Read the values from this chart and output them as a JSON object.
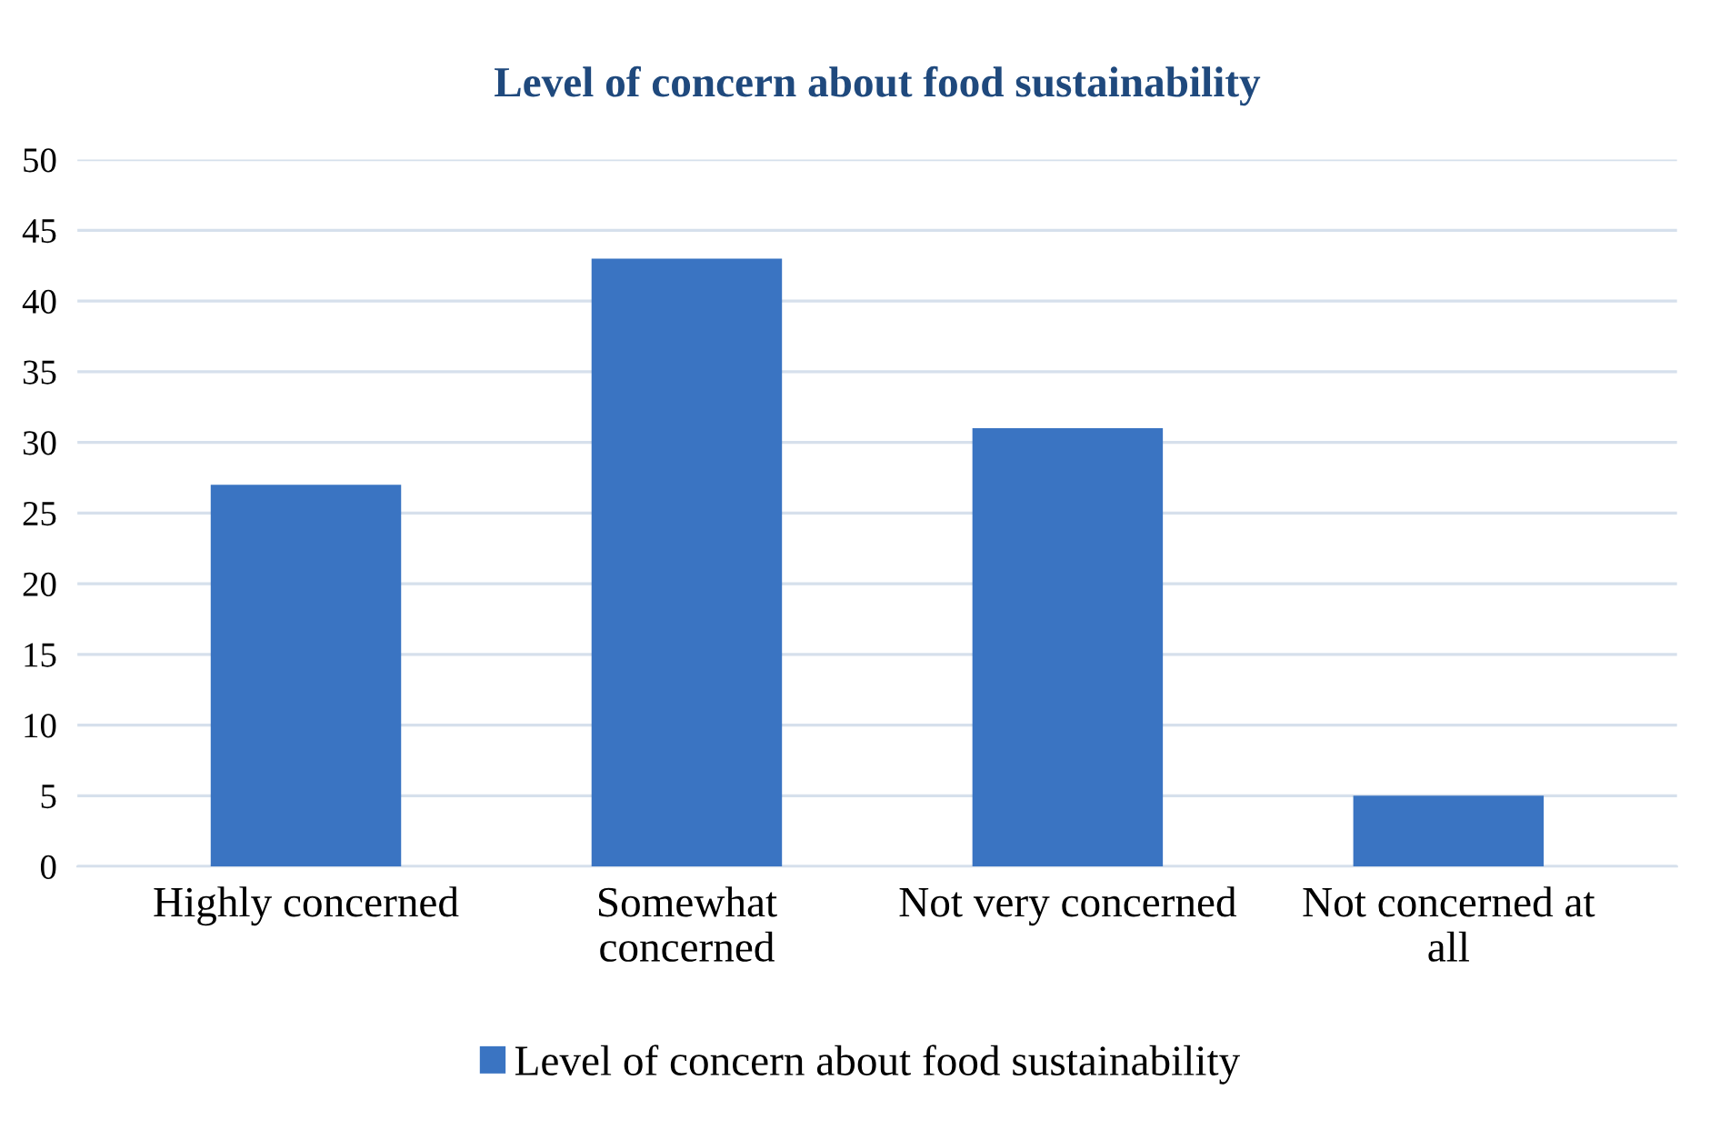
{
  "chart_data": {
    "type": "bar",
    "title": "Level of concern about food sustainability",
    "categories": [
      "Highly concerned",
      "Somewhat\nconcerned",
      "Not very concerned",
      "Not concerned at\nall"
    ],
    "series": [
      {
        "name": "Level of concern about food sustainability",
        "color": "#3a74c2",
        "values": [
          27,
          43,
          31,
          5
        ]
      }
    ],
    "ylim": [
      0,
      50
    ],
    "yticks": [
      0,
      5,
      10,
      15,
      20,
      25,
      30,
      35,
      40,
      45,
      50
    ],
    "grid": "y",
    "legend": "bottom"
  }
}
